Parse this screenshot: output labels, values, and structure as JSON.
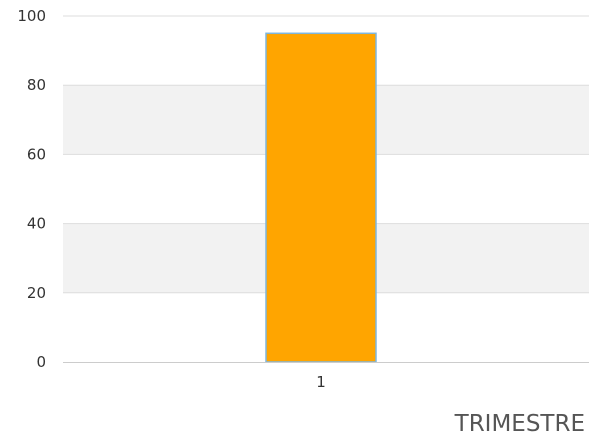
{
  "chart_data": {
    "type": "bar",
    "categories": [
      "1"
    ],
    "series": [
      {
        "values": [
          95
        ],
        "color": "#FFA500",
        "border_color": "#7EB6DD"
      }
    ],
    "title": "",
    "xlabel": "TRIMESTRE",
    "ylabel": "",
    "ylim": [
      0,
      100
    ],
    "y_ticks": [
      "0",
      "20",
      "40",
      "60",
      "80",
      "100"
    ],
    "grid": true,
    "band_color": "#F2F2F2",
    "grid_color": "#DDDDDD",
    "legend": "none"
  }
}
